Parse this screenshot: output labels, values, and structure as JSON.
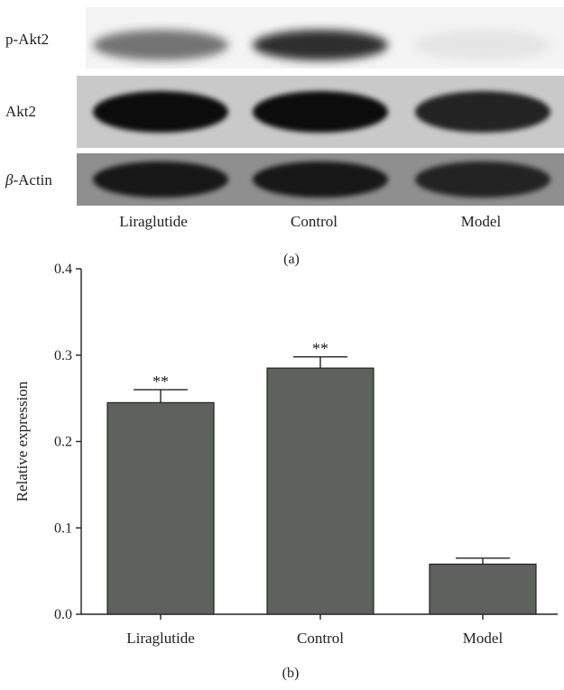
{
  "blot": {
    "rows": [
      {
        "label_prefix": "",
        "label_text": "p-Akt2",
        "intensity": [
          0.55,
          0.85,
          0.05
        ]
      },
      {
        "label_prefix": "",
        "label_text": "Akt2",
        "intensity": [
          1.0,
          1.0,
          0.9
        ]
      },
      {
        "label_prefix": "β",
        "label_text": "-Actin",
        "intensity": [
          0.95,
          0.95,
          0.9
        ]
      }
    ],
    "lanes": [
      "Liraglutide",
      "Control",
      "Model"
    ],
    "panel_label": "(a)"
  },
  "chart_data": {
    "type": "bar",
    "categories": [
      "Liraglutide",
      "Control",
      "Model"
    ],
    "values": [
      0.245,
      0.285,
      0.058
    ],
    "errors": [
      0.015,
      0.013,
      0.007
    ],
    "annotations": [
      "**",
      "**",
      ""
    ],
    "ylabel": "Relative expression",
    "xlabel": "",
    "ylim": [
      0,
      0.4
    ],
    "yticks": [
      "0.0",
      "0.1",
      "0.2",
      "0.3",
      "0.4"
    ],
    "bar_color": "#5f615f",
    "grid": false,
    "panel_label": "(b)"
  }
}
